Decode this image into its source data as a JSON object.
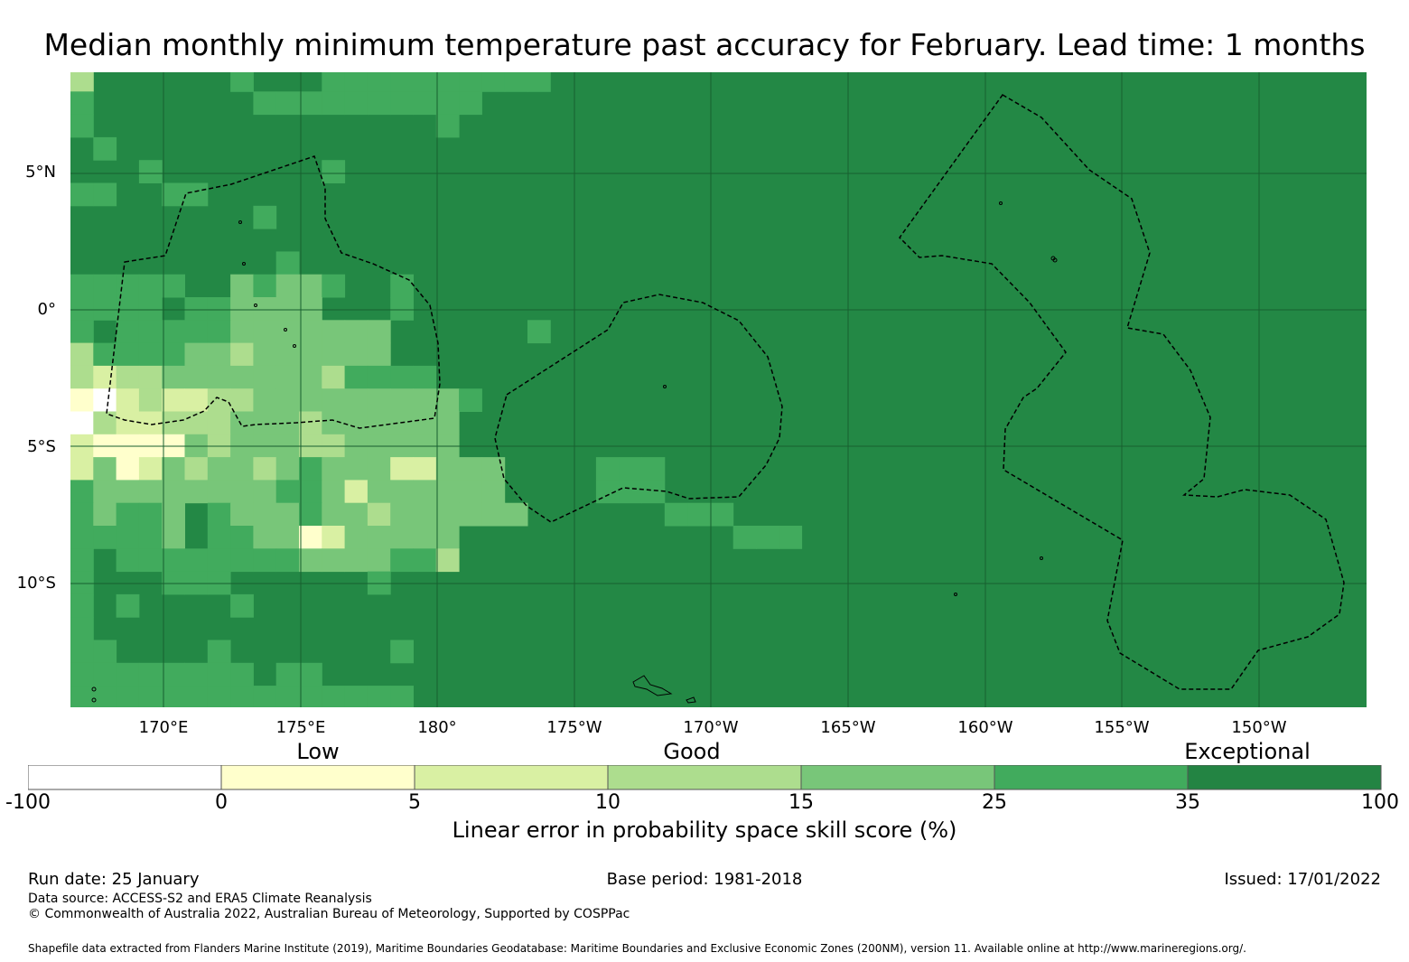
{
  "title": "Median monthly minimum temperature past accuracy for February. Lead time: 1 months",
  "map": {
    "lat_labels": [
      "5°N",
      "0°",
      "5°S",
      "10°S"
    ],
    "lon_labels": [
      "170°E",
      "175°E",
      "180°",
      "175°W",
      "170°W",
      "165°W",
      "160°W",
      "155°W",
      "150°W"
    ],
    "base_color": "#238845",
    "grid_color": "#175f30",
    "boundary_color": "#000000"
  },
  "colorbar": {
    "categories": [
      "Low",
      "Good",
      "Exceptional"
    ],
    "ticks": [
      "-100",
      "0",
      "5",
      "10",
      "15",
      "25",
      "35",
      "100"
    ],
    "colors": [
      "#ffffff",
      "#ffffcc",
      "#d9f0a3",
      "#addd8e",
      "#78c679",
      "#41ab5d",
      "#238443"
    ],
    "label": "Linear error in probability space skill score (%)"
  },
  "footer": {
    "run_date": "Run date: 25 January",
    "base_period": "Base period: 1981-2018",
    "issued": "Issued: 17/01/2022",
    "data_source": "Data source: ACCESS-S2 and ERA5 Climate Reanalysis",
    "copyright": "© Commonwealth of Australia 2022, Australian Bureau of Meteorology, Supported by COSPPac",
    "shapefile": "Shapefile data extracted from Flanders Marine Institute (2019), Maritime Boundaries Geodatabase: Maritime Boundaries and Exclusive Economic Zones (200NM), version 11. Available online at http://www.marineregions.org/."
  }
}
